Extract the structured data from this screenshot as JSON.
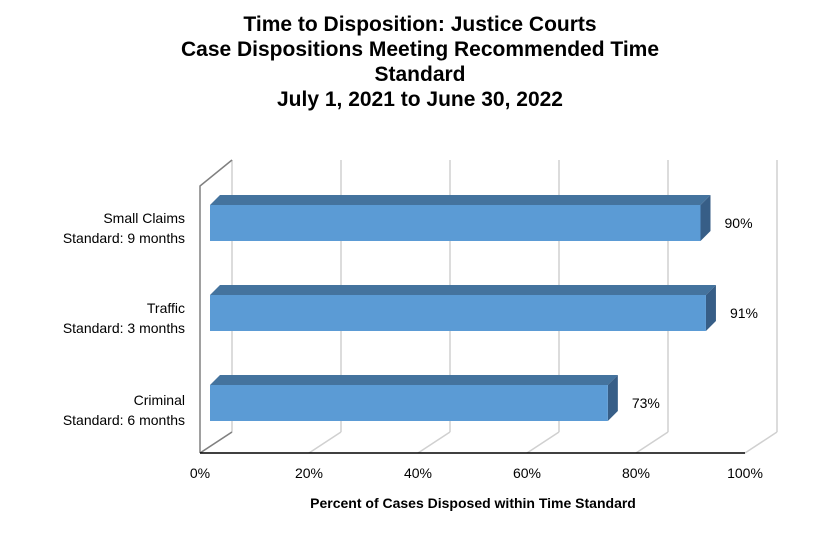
{
  "chart_data": {
    "type": "bar",
    "orientation": "horizontal",
    "style": "3d",
    "title_lines": [
      "Time to Disposition: Justice Courts",
      "Case Dispositions Meeting Recommended Time",
      "Standard",
      "July 1, 2021 to June 30, 2022"
    ],
    "categories": [
      {
        "name": "Small Claims",
        "sub": "Standard: 9 months"
      },
      {
        "name": "Traffic",
        "sub": "Standard: 3 months"
      },
      {
        "name": "Criminal",
        "sub": "Standard: 6 months"
      }
    ],
    "values": [
      0.9,
      0.91,
      0.73
    ],
    "data_labels": [
      "90%",
      "91%",
      "73%"
    ],
    "xlabel": "Percent of Cases Disposed within Time Standard",
    "ylabel": "",
    "xlim": [
      0,
      1
    ],
    "x_ticks": [
      "0%",
      "20%",
      "40%",
      "60%",
      "80%",
      "100%"
    ],
    "grid": true,
    "legend": "none",
    "colors": {
      "front": "#5B9BD5",
      "top": "#44739E",
      "side": "#375E87"
    }
  }
}
